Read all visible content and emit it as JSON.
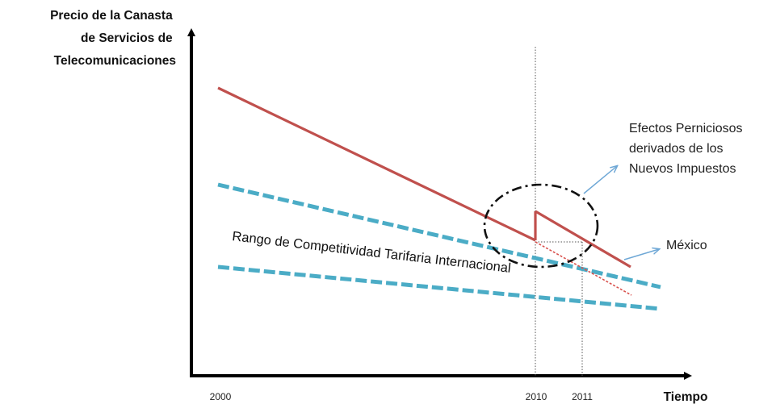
{
  "diagram": {
    "y_axis_label": [
      "Precio de la Canasta",
      "de Servicios de",
      "Telecomunicaciones"
    ],
    "x_axis_label": "Tiempo",
    "x_ticks": [
      "2000",
      "2010",
      "2011"
    ],
    "annotation_effects": [
      "Efectos Perniciosos",
      "derivados de los",
      "Nuevos Impuestos"
    ],
    "annotation_mexico": "México",
    "band_label": "Rango de Competitividad Tarifaria Internacional",
    "colors": {
      "axis": "#000000",
      "mexico_line": "#c0504d",
      "competitive_band": "#4bacc6",
      "projection": "#d9534f",
      "arrow": "#6fa8d6",
      "guide": "#555555"
    }
  }
}
